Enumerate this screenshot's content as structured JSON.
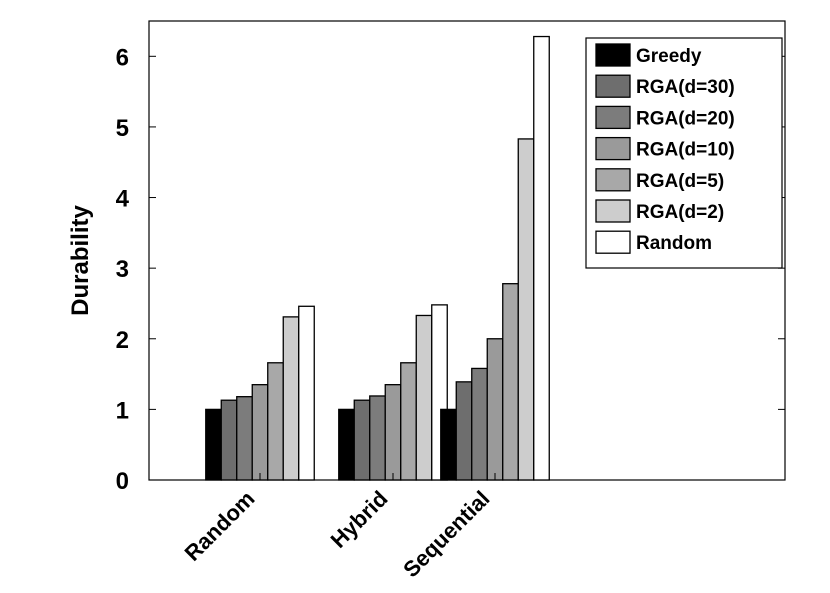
{
  "chart_data": {
    "type": "bar",
    "title": "",
    "xlabel": "",
    "ylabel": "Durability",
    "categories": [
      "Random",
      "Hybrid",
      "Sequential"
    ],
    "ylim": [
      0,
      6.5
    ],
    "yticks": [
      0,
      1,
      2,
      3,
      4,
      5,
      6
    ],
    "grid": false,
    "legend_position": "top-right",
    "series": [
      {
        "name": "Greedy",
        "color": "#000000",
        "values": [
          1.0,
          1.0,
          1.0
        ]
      },
      {
        "name": "RGA(d=30)",
        "color": "#6e6e6e",
        "values": [
          1.13,
          1.13,
          1.39
        ]
      },
      {
        "name": "RGA(d=20)",
        "color": "#7c7c7c",
        "values": [
          1.18,
          1.19,
          1.58
        ]
      },
      {
        "name": "RGA(d=10)",
        "color": "#9a9a9a",
        "values": [
          1.35,
          1.35,
          2.0
        ]
      },
      {
        "name": "RGA(d=5)",
        "color": "#a8a8a8",
        "values": [
          1.66,
          1.66,
          2.78
        ]
      },
      {
        "name": "RGA(d=2)",
        "color": "#cdcdcd",
        "values": [
          2.31,
          2.33,
          4.83
        ]
      },
      {
        "name": "Random",
        "color": "#ffffff",
        "values": [
          2.46,
          2.48,
          6.28
        ]
      }
    ]
  }
}
